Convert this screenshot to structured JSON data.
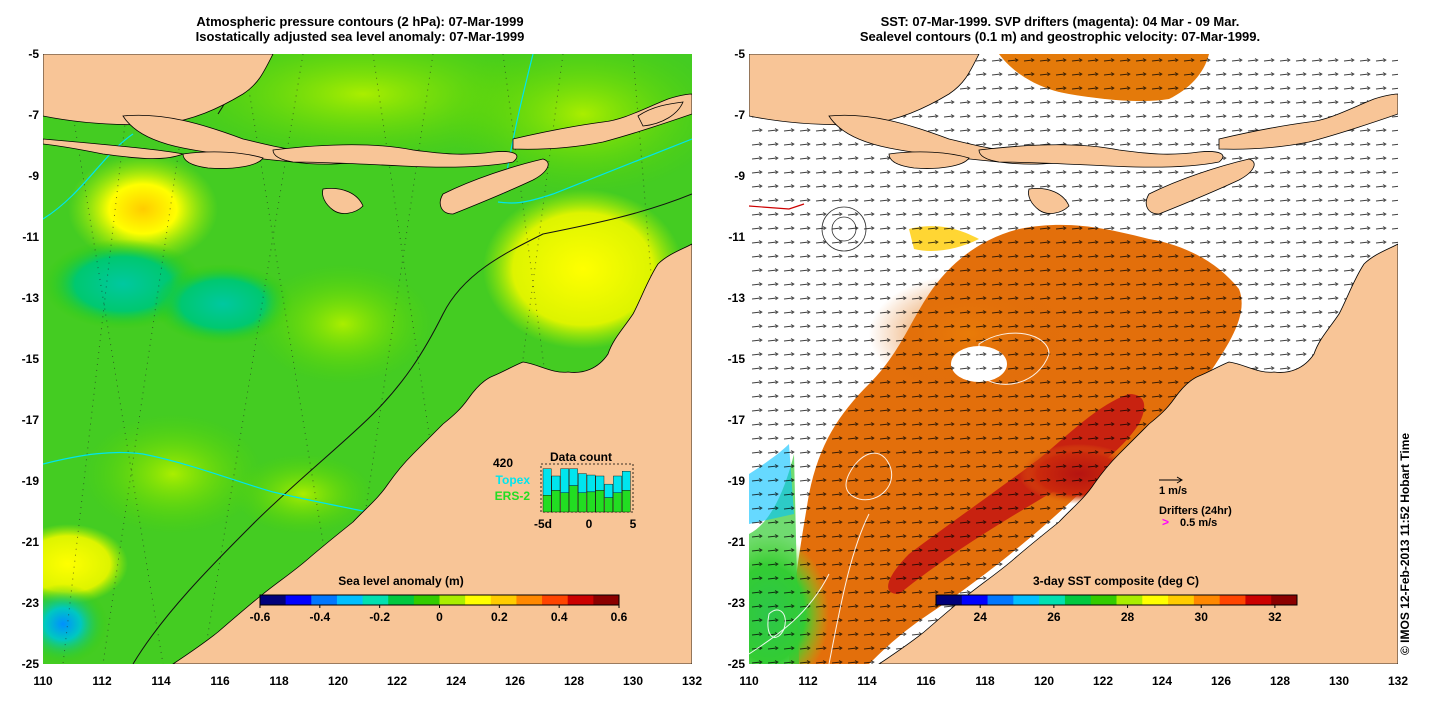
{
  "left_panel": {
    "title_line1": "Atmospheric pressure contours (2 hPa): 07-Mar-1999",
    "title_line2": "Isostatically adjusted sea level anomaly: 07-Mar-1999",
    "colorbar": {
      "title": "Sea level anomaly (m)",
      "tick_labels": [
        "-0.6",
        "-0.4",
        "-0.2",
        "0",
        "0.2",
        "0.4",
        "0.6"
      ],
      "range": [
        -0.6,
        0.6
      ],
      "colors": [
        "#00007a",
        "#0000ff",
        "#0077ff",
        "#00bfff",
        "#00e0b0",
        "#00c840",
        "#33cc00",
        "#aaee00",
        "#ffff00",
        "#ffcc00",
        "#ff8800",
        "#ff4400",
        "#cc0000",
        "#8b0000"
      ]
    },
    "data_count": {
      "title": "Data count",
      "count": "420",
      "series": [
        {
          "name": "Topex",
          "color": "#00e5ee"
        },
        {
          "name": "ERS-2",
          "color": "#22dd22"
        }
      ],
      "x_labels": [
        "-5d",
        "0",
        "5"
      ],
      "bars": [
        {
          "day": -5,
          "topex": 0.55,
          "ers2": 0.35
        },
        {
          "day": -4,
          "topex": 0.3,
          "ers2": 0.45
        },
        {
          "day": -3,
          "topex": 0.5,
          "ers2": 0.4
        },
        {
          "day": -2,
          "topex": 0.35,
          "ers2": 0.55
        },
        {
          "day": -1,
          "topex": 0.4,
          "ers2": 0.4
        },
        {
          "day": 0,
          "topex": 0.35,
          "ers2": 0.42
        },
        {
          "day": 1,
          "topex": 0.3,
          "ers2": 0.45
        },
        {
          "day": 2,
          "topex": 0.28,
          "ers2": 0.3
        },
        {
          "day": 3,
          "topex": 0.35,
          "ers2": 0.4
        },
        {
          "day": 4,
          "topex": 0.4,
          "ers2": 0.45
        }
      ]
    }
  },
  "right_panel": {
    "title_line1": "SST: 07-Mar-1999. SVP drifters (magenta): 04 Mar - 09 Mar.",
    "title_line2": "Sealevel contours (0.1 m) and geostrophic velocity: 07-Mar-1999.",
    "velocity_key": "1 m/s",
    "drifters_label": "Drifters (24hr)",
    "drifters_speed": "0.5 m/s",
    "drifters_marker": ">",
    "colorbar": {
      "title": "3-day SST composite (deg C)",
      "tick_labels": [
        "24",
        "26",
        "28",
        "30",
        "32"
      ],
      "range": [
        22.8,
        32.6
      ],
      "colors": [
        "#00007a",
        "#0000ff",
        "#0077ff",
        "#00bfff",
        "#00e0b0",
        "#00c840",
        "#33cc00",
        "#aaee00",
        "#ffff00",
        "#ffcc00",
        "#ff8800",
        "#ff4400",
        "#cc0000",
        "#8b0000"
      ]
    }
  },
  "axes": {
    "latitudes": [
      -5,
      -7,
      -9,
      -11,
      -13,
      -15,
      -17,
      -19,
      -21,
      -23,
      -25
    ],
    "longitudes": [
      110,
      112,
      114,
      116,
      118,
      120,
      122,
      124,
      126,
      128,
      130,
      132
    ],
    "y_labels": [
      "-5",
      "-7",
      "-9",
      "-11",
      "-13",
      "-15",
      "-17",
      "-19",
      "-21",
      "-23",
      "-25"
    ],
    "x_labels": [
      "110",
      "112",
      "114",
      "116",
      "118",
      "120",
      "122",
      "124",
      "126",
      "128",
      "130",
      "132"
    ]
  },
  "colors": {
    "land": "#f8c597",
    "ocean_sla_base": "#33cc00",
    "sst_warm": "#e06a0a",
    "sst_hot": "#b81010",
    "cloud": "#ffffff",
    "drifter": "#ff00ff",
    "track": "#00e5ee"
  },
  "credit": "© IMOS 12-Feb-2013 11:52 Hobart Time"
}
